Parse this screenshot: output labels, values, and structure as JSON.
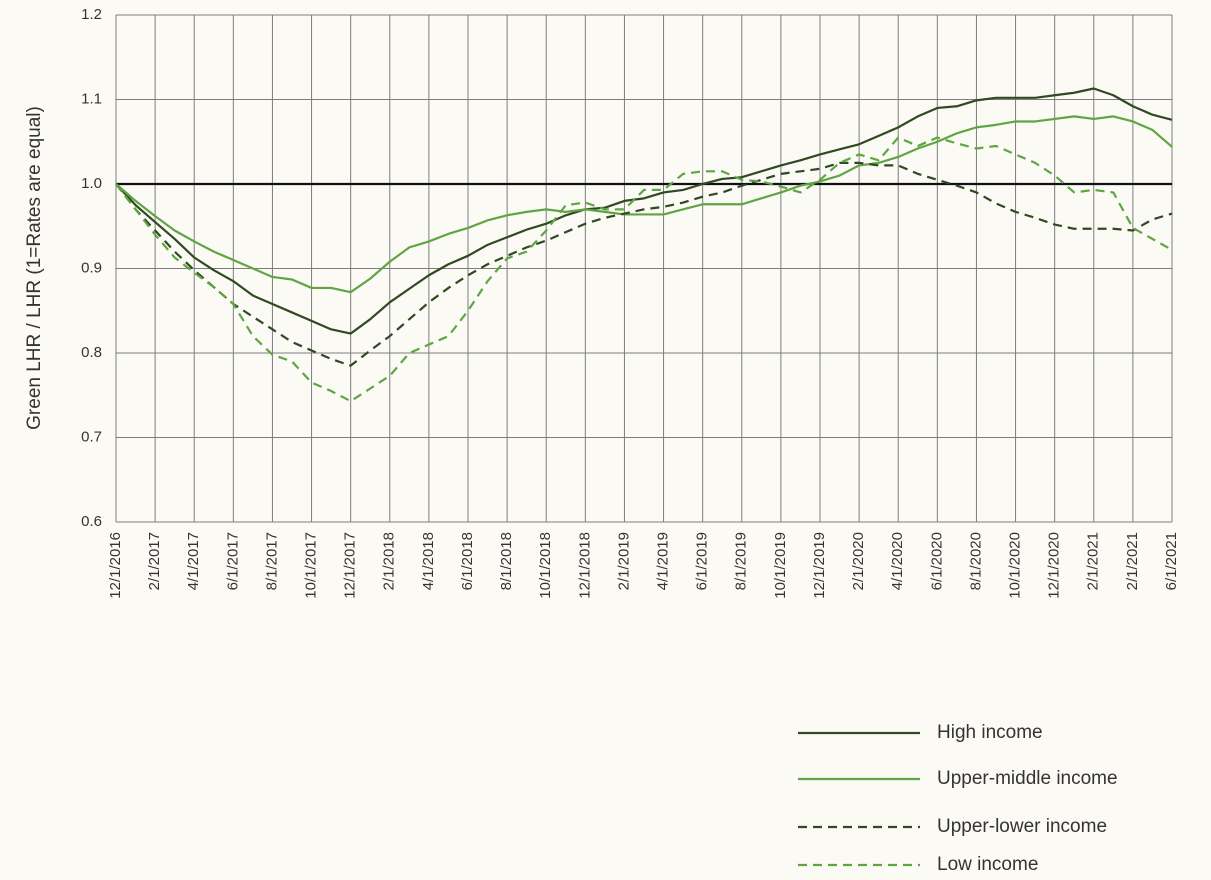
{
  "chart_data": {
    "type": "line",
    "y_label": "Green LHR / LHR (1=Rates are equal)",
    "categories": [
      "12/1/2016",
      null,
      "2/1/2017",
      null,
      "4/1/2017",
      null,
      "6/1/2017",
      null,
      "8/1/2017",
      null,
      "10/1/2017",
      null,
      "12/1/2017",
      null,
      "2/1/2018",
      null,
      "4/1/2018",
      null,
      "6/1/2018",
      null,
      "8/1/2018",
      null,
      "10/1/2018",
      null,
      "12/1/2018",
      null,
      "2/1/2019",
      null,
      "4/1/2019",
      null,
      "6/1/2019",
      null,
      "8/1/2019",
      null,
      "10/1/2019",
      null,
      "12/1/2019",
      null,
      "2/1/2020",
      null,
      "4/1/2020",
      null,
      "6/1/2020",
      null,
      "8/1/2020",
      null,
      "10/1/2020",
      null,
      "12/1/2020",
      null,
      "2/1/2021",
      null,
      "2/1/2021",
      null,
      "6/1/2021"
    ],
    "series": [
      {
        "name": "High income",
        "color": "#2f4a22",
        "dash": false,
        "values": [
          1.0,
          0.975,
          0.955,
          0.935,
          0.913,
          0.898,
          0.885,
          0.868,
          0.858,
          0.848,
          0.838,
          0.828,
          0.823,
          0.84,
          0.86,
          0.876,
          0.892,
          0.905,
          0.915,
          0.928,
          0.937,
          0.946,
          0.953,
          0.963,
          0.97,
          0.972,
          0.98,
          0.983,
          0.99,
          0.993,
          1.0,
          1.006,
          1.008,
          1.015,
          1.022,
          1.028,
          1.035,
          1.041,
          1.047,
          1.057,
          1.067,
          1.08,
          1.09,
          1.092,
          1.099,
          1.102,
          1.102,
          1.102,
          1.105,
          1.108,
          1.113,
          1.105,
          1.092,
          1.082,
          1.076
        ]
      },
      {
        "name": "Upper-middle income",
        "color": "#5fa544",
        "dash": false,
        "values": [
          1.0,
          0.98,
          0.962,
          0.945,
          0.932,
          0.92,
          0.91,
          0.9,
          0.89,
          0.887,
          0.877,
          0.877,
          0.872,
          0.888,
          0.908,
          0.925,
          0.932,
          0.941,
          0.948,
          0.957,
          0.963,
          0.967,
          0.97,
          0.967,
          0.97,
          0.967,
          0.964,
          0.964,
          0.964,
          0.97,
          0.976,
          0.976,
          0.976,
          0.983,
          0.99,
          0.998,
          1.003,
          1.01,
          1.022,
          1.025,
          1.032,
          1.042,
          1.05,
          1.06,
          1.067,
          1.07,
          1.074,
          1.074,
          1.077,
          1.08,
          1.077,
          1.08,
          1.074,
          1.064,
          1.044
        ]
      },
      {
        "name": "Upper-lower income",
        "color": "#2f4a22",
        "dash": true,
        "values": [
          1.0,
          0.97,
          0.945,
          0.92,
          0.898,
          0.878,
          0.858,
          0.843,
          0.828,
          0.813,
          0.803,
          0.793,
          0.785,
          0.803,
          0.82,
          0.84,
          0.86,
          0.877,
          0.892,
          0.905,
          0.915,
          0.925,
          0.933,
          0.943,
          0.953,
          0.96,
          0.965,
          0.97,
          0.973,
          0.978,
          0.985,
          0.99,
          0.998,
          1.005,
          1.012,
          1.015,
          1.018,
          1.025,
          1.025,
          1.022,
          1.022,
          1.012,
          1.005,
          0.998,
          0.99,
          0.977,
          0.967,
          0.96,
          0.952,
          0.947,
          0.947,
          0.947,
          0.945,
          0.958,
          0.965
        ]
      },
      {
        "name": "Low income",
        "color": "#5fa544",
        "dash": true,
        "values": [
          1.0,
          0.97,
          0.94,
          0.913,
          0.895,
          0.878,
          0.858,
          0.82,
          0.798,
          0.79,
          0.765,
          0.755,
          0.743,
          0.758,
          0.773,
          0.8,
          0.81,
          0.82,
          0.85,
          0.885,
          0.912,
          0.92,
          0.945,
          0.975,
          0.978,
          0.97,
          0.97,
          0.993,
          0.993,
          1.012,
          1.015,
          1.015,
          1.005,
          1.003,
          0.997,
          0.99,
          1.005,
          1.025,
          1.035,
          1.028,
          1.055,
          1.045,
          1.055,
          1.048,
          1.042,
          1.045,
          1.035,
          1.025,
          1.01,
          0.99,
          0.993,
          0.99,
          0.948,
          0.935,
          0.922
        ]
      }
    ],
    "ylim": [
      0.6,
      1.2
    ],
    "yticks": [
      0.6,
      0.7,
      0.8,
      0.9,
      {
        "value": 1,
        "label": "1.0"
      },
      1.1,
      1.2
    ],
    "reference_line": 1,
    "grid": true,
    "legend": "bottom-right"
  }
}
